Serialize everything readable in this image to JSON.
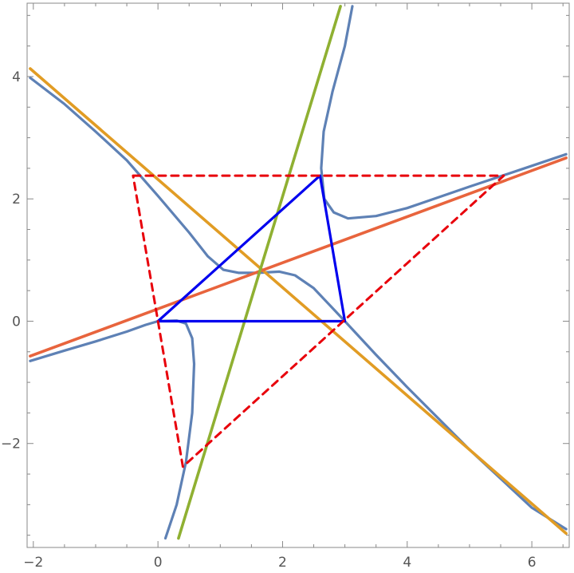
{
  "chart_data": {
    "type": "line",
    "title": "",
    "xlabel": "",
    "ylabel": "",
    "xlim": [
      -2.1,
      6.6
    ],
    "ylim": [
      -3.7,
      5.2
    ],
    "grid": false,
    "frame": true,
    "x_ticks": [
      {
        "value": -2,
        "label": "−2"
      },
      {
        "value": 0,
        "label": "0"
      },
      {
        "value": 2,
        "label": "2"
      },
      {
        "value": 4,
        "label": "4"
      },
      {
        "value": 6,
        "label": "6"
      }
    ],
    "y_ticks": [
      {
        "value": -2,
        "label": "−2"
      },
      {
        "value": 0,
        "label": "0"
      },
      {
        "value": 2,
        "label": "2"
      },
      {
        "value": 4,
        "label": "4"
      }
    ],
    "series": [
      {
        "kind": "curve",
        "color": "#5e81b5",
        "width": 3.2,
        "points": [
          [
            -2.05,
            3.98
          ],
          [
            -1.5,
            3.55
          ],
          [
            -1.0,
            3.1
          ],
          [
            -0.5,
            2.63
          ],
          [
            0.0,
            2.05
          ],
          [
            0.5,
            1.45
          ],
          [
            0.8,
            1.06
          ],
          [
            1.05,
            0.84
          ],
          [
            1.3,
            0.79
          ],
          [
            1.6,
            0.79
          ]
        ]
      },
      {
        "kind": "curve",
        "color": "#5e81b5",
        "width": 3.2,
        "points": [
          [
            1.6,
            0.79
          ],
          [
            1.95,
            0.81
          ],
          [
            2.2,
            0.75
          ],
          [
            2.5,
            0.54
          ],
          [
            2.75,
            0.27
          ],
          [
            3.0,
            0.0
          ],
          [
            3.5,
            -0.55
          ],
          [
            4.0,
            -1.08
          ],
          [
            5.0,
            -2.1
          ],
          [
            6.0,
            -3.05
          ],
          [
            6.55,
            -3.4
          ]
        ]
      },
      {
        "kind": "curve",
        "color": "#5e81b5",
        "width": 3.2,
        "points": [
          [
            -2.05,
            -0.65
          ],
          [
            -1.5,
            -0.48
          ],
          [
            -1.0,
            -0.33
          ],
          [
            -0.5,
            -0.17
          ],
          [
            -0.2,
            -0.06
          ],
          [
            0.0,
            0.0
          ],
          [
            0.3,
            0.01
          ],
          [
            0.45,
            -0.04
          ],
          [
            0.55,
            -0.28
          ],
          [
            0.58,
            -0.7
          ],
          [
            0.55,
            -1.5
          ],
          [
            0.45,
            -2.3
          ],
          [
            0.3,
            -3.0
          ],
          [
            0.12,
            -3.55
          ]
        ]
      },
      {
        "kind": "curve",
        "color": "#5e81b5",
        "width": 3.2,
        "points": [
          [
            3.12,
            5.15
          ],
          [
            3.0,
            4.5
          ],
          [
            2.8,
            3.75
          ],
          [
            2.66,
            3.1
          ],
          [
            2.62,
            2.5
          ],
          [
            2.67,
            2.0
          ],
          [
            2.82,
            1.78
          ],
          [
            3.05,
            1.68
          ],
          [
            3.5,
            1.72
          ],
          [
            4.0,
            1.85
          ],
          [
            5.0,
            2.2
          ],
          [
            6.0,
            2.54
          ],
          [
            6.55,
            2.73
          ]
        ]
      },
      {
        "kind": "line",
        "color": "#e19c24",
        "width": 3.6,
        "points": [
          [
            -2.05,
            4.13
          ],
          [
            6.55,
            -3.47
          ]
        ]
      },
      {
        "kind": "line",
        "color": "#e8643d",
        "width": 3.6,
        "points": [
          [
            -2.05,
            -0.57
          ],
          [
            6.55,
            2.67
          ]
        ]
      },
      {
        "kind": "line",
        "color": "#8fb032",
        "width": 3.6,
        "points": [
          [
            0.33,
            -3.55
          ],
          [
            2.93,
            5.15
          ]
        ]
      },
      {
        "kind": "polygon",
        "color": "#0000ee",
        "width": 3.2,
        "dashed": false,
        "points": [
          [
            0.0,
            0.0
          ],
          [
            3.0,
            0.0
          ],
          [
            2.6,
            2.38
          ]
        ]
      },
      {
        "kind": "polygon",
        "color": "#e8000b",
        "width": 3.0,
        "dashed": true,
        "points": [
          [
            -0.4,
            2.38
          ],
          [
            5.55,
            2.38
          ],
          [
            0.4,
            -2.38
          ]
        ]
      }
    ]
  }
}
